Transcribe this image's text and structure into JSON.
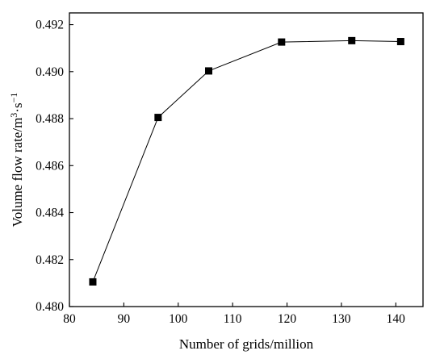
{
  "chart_data": {
    "type": "line",
    "xlabel": "Number of grids/million",
    "ylabel_parts": {
      "main": "Volume flow rate/m",
      "sup1": "3",
      "mid": "·s",
      "sup2": "−1"
    },
    "xlim": [
      80,
      145
    ],
    "ylim": [
      0.48,
      0.4925
    ],
    "x_ticks": [
      80,
      90,
      100,
      110,
      120,
      130,
      140
    ],
    "y_ticks": [
      0.48,
      0.482,
      0.484,
      0.486,
      0.488,
      0.49,
      0.492
    ],
    "x_tick_labels": [
      "80",
      "90",
      "100",
      "110",
      "120",
      "130",
      "140"
    ],
    "y_tick_labels": [
      "0.480",
      "0.482",
      "0.484",
      "0.486",
      "0.488",
      "0.490",
      "0.492"
    ],
    "series": [
      {
        "marker": "square",
        "color": "#000000",
        "x": [
          84.3,
          96.3,
          105.6,
          119.0,
          131.9,
          140.9
        ],
        "y": [
          0.48105,
          0.48805,
          0.49003,
          0.49126,
          0.49132,
          0.49128
        ]
      }
    ],
    "grid": false
  }
}
